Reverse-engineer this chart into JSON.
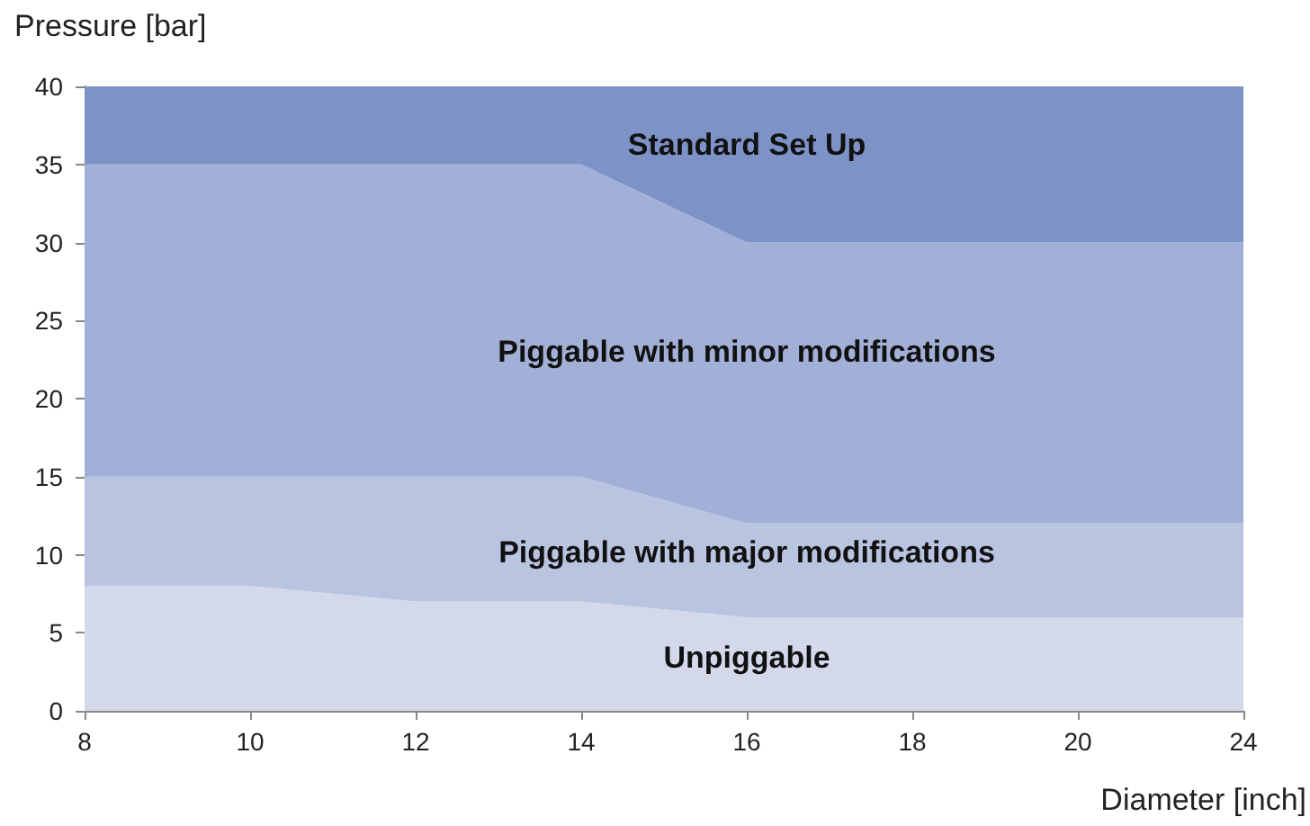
{
  "chart_data": {
    "type": "area",
    "stacked": true,
    "xlabel": "Diameter [inch]",
    "ylabel": "Pressure [bar]",
    "categories": [
      "8",
      "10",
      "12",
      "14",
      "16",
      "18",
      "20",
      "24"
    ],
    "series": [
      {
        "name": "Unpiggable",
        "color": "#d3d8eb",
        "values": [
          8,
          8,
          7,
          7,
          6,
          6,
          6,
          6
        ]
      },
      {
        "name": "Piggable with major modifications",
        "color": "#b9c4e1",
        "values": [
          7,
          7,
          8,
          8,
          6,
          6,
          6,
          6
        ]
      },
      {
        "name": "Piggable with minor modifications",
        "color": "#a2b0d7",
        "values": [
          20,
          20,
          20,
          20,
          18,
          18,
          18,
          18
        ]
      },
      {
        "name": "Standard Set Up",
        "color": "#7d93c8",
        "values": [
          5,
          5,
          5,
          5,
          10,
          10,
          10,
          10
        ]
      }
    ],
    "ylim": [
      0,
      40
    ],
    "yticks": [
      0,
      5,
      10,
      15,
      20,
      25,
      30,
      35,
      40
    ],
    "grid": false,
    "legend": false
  }
}
